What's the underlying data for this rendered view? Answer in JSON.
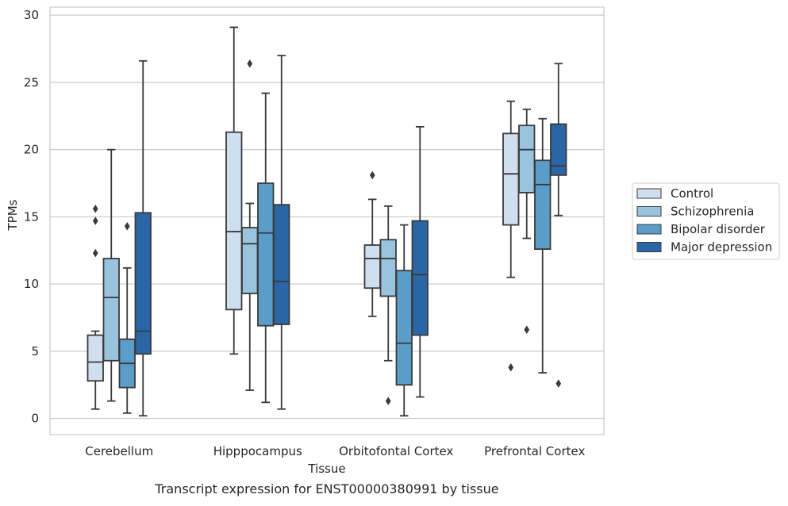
{
  "chart_data": {
    "type": "box",
    "title": "Transcript expression for ENST00000380991 by tissue",
    "xlabel": "Tissue",
    "ylabel": "TPMs",
    "ylim": [
      -1.2,
      30.6
    ],
    "yticks": [
      0,
      5,
      10,
      15,
      20,
      25,
      30
    ],
    "grid": true,
    "legend_position": "right",
    "categories": [
      "Cerebellum",
      "Hipppocampus",
      "Orbitofontal Cortex",
      "Prefrontal Cortex"
    ],
    "series": [
      {
        "name": "Control",
        "color": "#d0dff0",
        "boxes": [
          {
            "whisker_low": 0.7,
            "q1": 2.8,
            "median": 4.2,
            "q3": 6.2,
            "whisker_high": 6.5,
            "outliers": [
              12.3,
              14.7,
              15.6
            ]
          },
          {
            "whisker_low": 4.8,
            "q1": 8.1,
            "median": 13.9,
            "q3": 21.3,
            "whisker_high": 29.1,
            "outliers": []
          },
          {
            "whisker_low": 7.6,
            "q1": 9.7,
            "median": 11.9,
            "q3": 12.9,
            "whisker_high": 16.3,
            "outliers": [
              18.1
            ]
          },
          {
            "whisker_low": 10.5,
            "q1": 14.4,
            "median": 18.2,
            "q3": 21.2,
            "whisker_high": 23.6,
            "outliers": [
              3.8
            ]
          }
        ]
      },
      {
        "name": "Schizophrenia",
        "color": "#9ac4de",
        "boxes": [
          {
            "whisker_low": 1.3,
            "q1": 4.3,
            "median": 9.0,
            "q3": 11.9,
            "whisker_high": 20.0,
            "outliers": []
          },
          {
            "whisker_low": 2.1,
            "q1": 9.3,
            "median": 13.0,
            "q3": 14.2,
            "whisker_high": 16.0,
            "outliers": [
              26.4
            ]
          },
          {
            "whisker_low": 4.3,
            "q1": 9.1,
            "median": 11.9,
            "q3": 13.3,
            "whisker_high": 15.8,
            "outliers": [
              1.3
            ]
          },
          {
            "whisker_low": 13.4,
            "q1": 16.8,
            "median": 20.0,
            "q3": 21.8,
            "whisker_high": 23.0,
            "outliers": [
              6.6
            ]
          }
        ]
      },
      {
        "name": "Bipolar disorder",
        "color": "#5a9dc9",
        "boxes": [
          {
            "whisker_low": 0.4,
            "q1": 2.3,
            "median": 4.1,
            "q3": 5.9,
            "whisker_high": 11.2,
            "outliers": [
              14.3
            ]
          },
          {
            "whisker_low": 1.2,
            "q1": 6.9,
            "median": 13.8,
            "q3": 17.5,
            "whisker_high": 24.2,
            "outliers": []
          },
          {
            "whisker_low": 0.2,
            "q1": 2.5,
            "median": 5.6,
            "q3": 11.0,
            "whisker_high": 14.4,
            "outliers": []
          },
          {
            "whisker_low": 3.4,
            "q1": 12.6,
            "median": 17.4,
            "q3": 19.2,
            "whisker_high": 22.3,
            "outliers": []
          }
        ]
      },
      {
        "name": "Major depression",
        "color": "#2a66a6",
        "boxes": [
          {
            "whisker_low": 0.2,
            "q1": 4.8,
            "median": 6.5,
            "q3": 15.3,
            "whisker_high": 26.6,
            "outliers": []
          },
          {
            "whisker_low": 0.7,
            "q1": 7.0,
            "median": 10.2,
            "q3": 15.9,
            "whisker_high": 27.0,
            "outliers": []
          },
          {
            "whisker_low": 1.6,
            "q1": 6.2,
            "median": 10.7,
            "q3": 14.7,
            "whisker_high": 21.7,
            "outliers": []
          },
          {
            "whisker_low": 15.1,
            "q1": 18.1,
            "median": 18.8,
            "q3": 21.9,
            "whisker_high": 26.4,
            "outliers": [
              2.6
            ]
          }
        ]
      }
    ]
  }
}
